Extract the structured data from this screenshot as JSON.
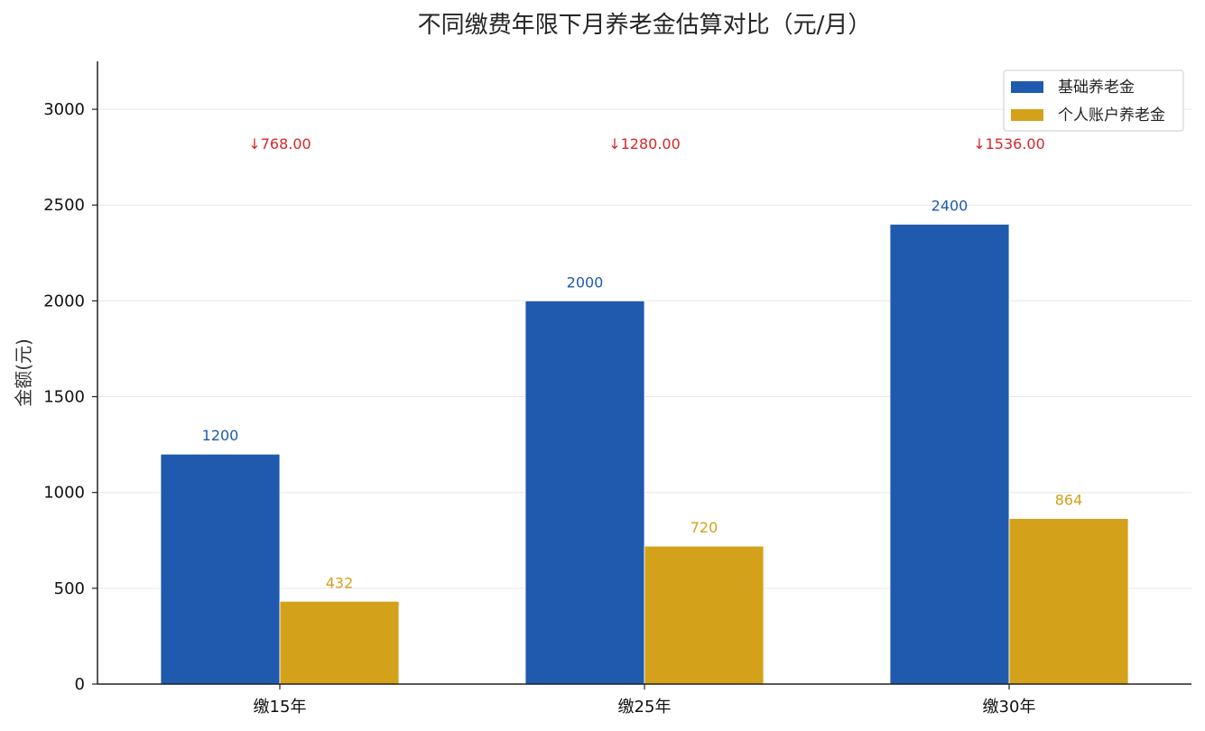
{
  "chart_data": {
    "type": "bar",
    "title": "不同缴费年限下月养老金估算对比（元/月）",
    "xlabel": "",
    "ylabel": "金额(元)",
    "categories": [
      "缴15年",
      "缴25年",
      "缴30年"
    ],
    "series": [
      {
        "name": "基础养老金",
        "color": "#1f5aaf",
        "values": [
          1200,
          2000,
          2400
        ],
        "labels": [
          "1200",
          "2000",
          "2400"
        ]
      },
      {
        "name": "个人账户养老金",
        "color": "#d4a11a",
        "values": [
          432,
          720,
          864
        ],
        "labels": [
          "432",
          "720",
          "864"
        ]
      }
    ],
    "annotations": [
      {
        "category": "缴15年",
        "text": "↓768.00",
        "value": 768.0
      },
      {
        "category": "缴25年",
        "text": "↓1280.00",
        "value": 1280.0
      },
      {
        "category": "缴30年",
        "text": "↓1536.00",
        "value": 1536.0
      }
    ],
    "annotation_color": "#d62728",
    "ylim": [
      0,
      3250
    ],
    "yticks": [
      0,
      500,
      1000,
      1500,
      2000,
      2500,
      3000
    ],
    "grid": true,
    "legend_position": "top-right"
  }
}
